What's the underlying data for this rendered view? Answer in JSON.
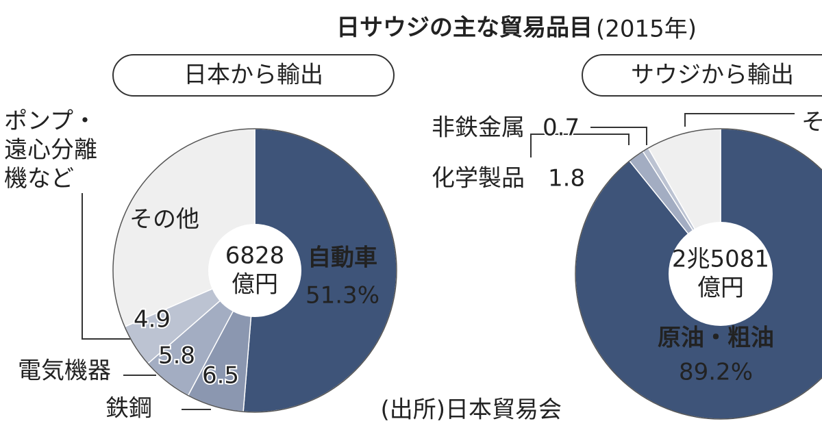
{
  "title": "日サウジの主な貿易品目",
  "title_note": "(2015年)",
  "source": "(出所)日本貿易会",
  "chart_data": [
    {
      "type": "pie",
      "title": "日本から輸出",
      "total": "6828",
      "total_unit": "億円",
      "categories": [
        "自動車",
        "鉄鋼",
        "電気機器",
        "ポンプ・遠心分離機など",
        "その他"
      ],
      "values": [
        51.3,
        6.5,
        5.8,
        4.9,
        31.5
      ],
      "value_labels": [
        "51.3%",
        "6.5",
        "5.8",
        "4.9",
        null
      ],
      "colors": [
        "#3e5479",
        "#8b97b0",
        "#a3adc2",
        "#bcc3d2",
        "#efefef"
      ]
    },
    {
      "type": "pie",
      "title": "サウジから輸出",
      "total": "2兆5081",
      "total_unit": "億円",
      "categories": [
        "原油・粗油",
        "化学製品",
        "非鉄金属",
        "その他"
      ],
      "values": [
        89.2,
        1.8,
        0.7,
        8.3
      ],
      "value_labels": [
        "89.2%",
        "1.8",
        "0.7",
        null
      ],
      "colors": [
        "#3e5479",
        "#a3adc2",
        "#bcc3d2",
        "#efefef"
      ]
    }
  ]
}
